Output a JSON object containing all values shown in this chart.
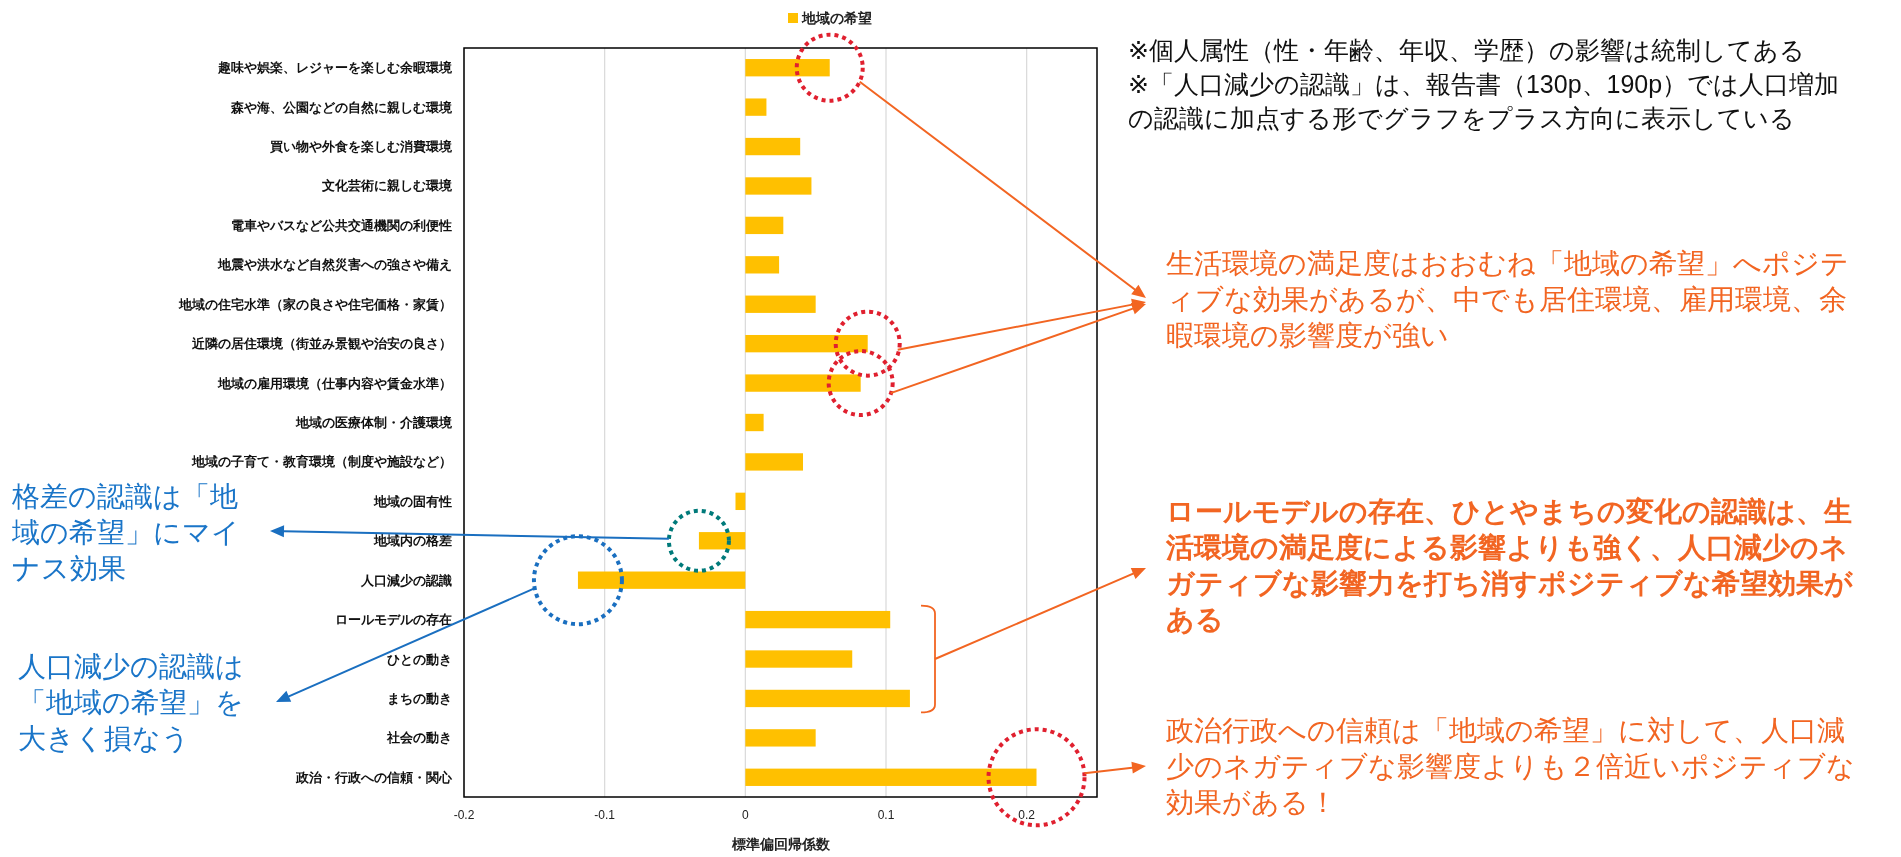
{
  "chart_data": {
    "type": "bar",
    "orientation": "horizontal",
    "categories": [
      "趣味や娯楽、レジャーを楽しむ余暇環境",
      "森や海、公園などの自然に親しむ環境",
      "買い物や外食を楽しむ消費環境",
      "文化芸術に親しむ環境",
      "電車やバスなど公共交通機関の利便性",
      "地震や洪水など自然災害への強さや備え",
      "地域の住宅水準（家の良さや住宅価格・家賃）",
      "近隣の居住環境（街並み景観や治安の良さ）",
      "地域の雇用環境（仕事内容や賃金水準）",
      "地域の医療体制・介護環境",
      "地域の子育て・教育環境（制度や施設など）",
      "地域の固有性",
      "地域内の格差",
      "人口減少の認識",
      "ロールモデルの存在",
      "ひとの動き",
      "まちの動き",
      "社会の動き",
      "政治・行政への信頼・関心"
    ],
    "series": [
      {
        "name": "地域の希望",
        "color": "#ffc000",
        "values": [
          0.06,
          0.015,
          0.039,
          0.047,
          0.027,
          0.024,
          0.05,
          0.087,
          0.082,
          0.013,
          0.041,
          -0.007,
          -0.033,
          -0.119,
          0.103,
          0.076,
          0.117,
          0.05,
          0.207
        ]
      }
    ],
    "xlabel": "標準偏回帰係数",
    "xlim": [
      -0.2,
      0.25
    ],
    "xticks": [
      -0.2,
      -0.1,
      0,
      0.1,
      0.2
    ],
    "grid": "x",
    "legend": "top",
    "annotations": [
      "※個人属性（性・年齢、年収、学歴）の影響は統制してある",
      "※「人口減少の認識」は、報告書（130p、190p）では人口増加の認識に加点する形でグラフをプラス方向に表示している",
      "生活環境の満足度はおおむね「地域の希望」へポジティブな効果があるが、中でも居住環境、雇用環境、余暇環境の影響度が強い",
      "ロールモデルの存在、ひとやまちの変化の認識は、生活環境の満足度による影響よりも強く、人口減少のネガティブな影響力を打ち消すポジティブな希望効果がある",
      "政治行政への信頼は「地域の希望」に対して、人口減少のネガティブな影響度よりも２倍近いポジティブな効果がある！",
      "格差の認識は「地域の希望」にマイナス効果",
      "人口減少の認識は「地域の希望」を大きく損なう"
    ]
  }
}
